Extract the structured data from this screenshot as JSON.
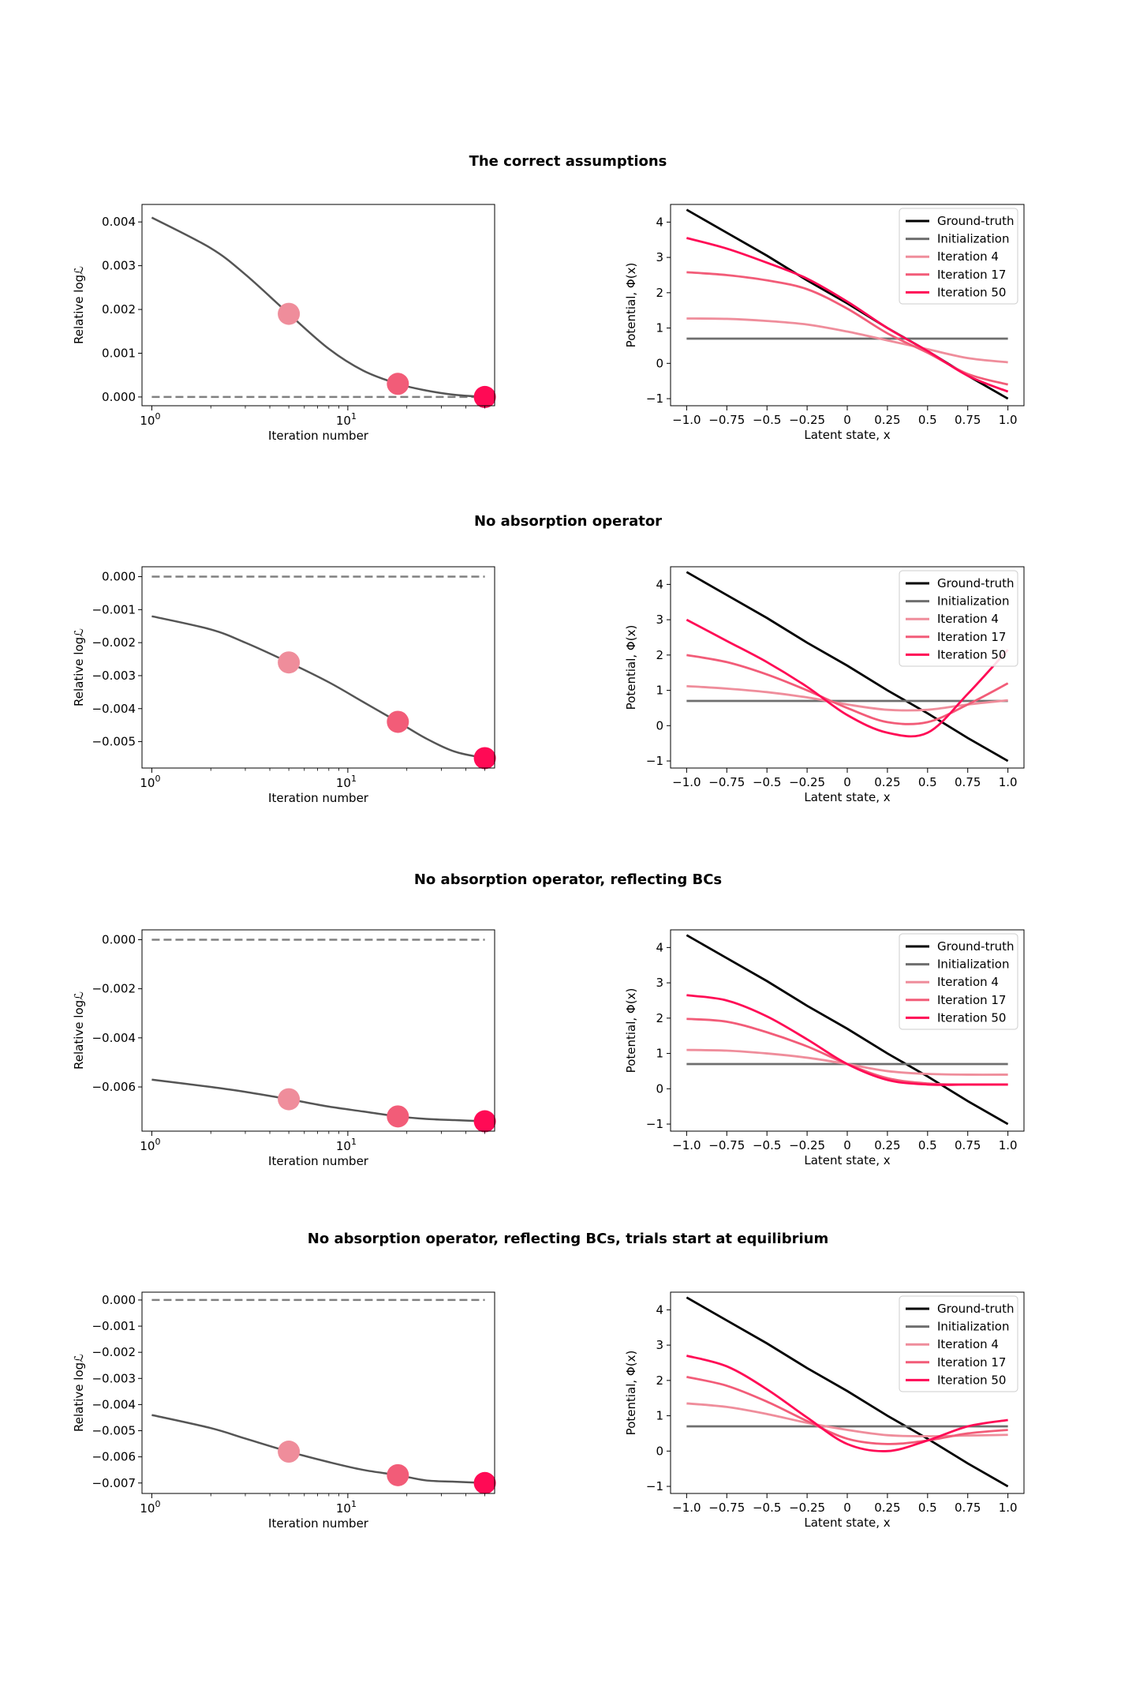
{
  "colors": {
    "ground_truth": "#000000",
    "initialization": "#6e6e6e",
    "iter4": "#ef8d9b",
    "iter17": "#f25c78",
    "iter50": "#ff0a55",
    "loss_line": "#555555",
    "zero_ref": "#808080"
  },
  "panels": [
    {
      "title": "The correct assumptions",
      "loss": {
        "type": "line",
        "xscale": "log",
        "xlim": [
          1,
          50
        ],
        "ylim": [
          -0.0002,
          0.0044
        ],
        "yticks": [
          0.0,
          0.001,
          0.002,
          0.003,
          0.004
        ],
        "ytick_labels": [
          "0.000",
          "0.001",
          "0.002",
          "0.003",
          "0.004"
        ],
        "x": [
          1,
          2,
          3,
          5,
          8,
          12,
          18,
          25,
          35,
          50
        ],
        "y": [
          0.0041,
          0.0034,
          0.0028,
          0.0019,
          0.0011,
          0.0006,
          0.0003,
          0.00015,
          5e-05,
          0.0
        ],
        "markers": [
          {
            "x": 5,
            "y": 0.0019,
            "series": "iter4"
          },
          {
            "x": 18,
            "y": 0.0003,
            "series": "iter17"
          },
          {
            "x": 50,
            "y": 0.0,
            "series": "iter50"
          }
        ],
        "reference": 0.0,
        "xlabel": "Iteration number",
        "ylabel": "Relative logℒ"
      },
      "potential": {
        "type": "line",
        "xlim": [
          -1.1,
          1.1
        ],
        "ylim": [
          -1.2,
          4.5
        ],
        "yticks": [
          -1,
          0,
          1,
          2,
          3,
          4
        ],
        "x": [
          -1.0,
          -0.75,
          -0.5,
          -0.25,
          0.0,
          0.25,
          0.5,
          0.75,
          1.0
        ],
        "series": [
          {
            "name": "Ground-truth",
            "color_key": "ground_truth",
            "y": [
              4.35,
              3.7,
              3.05,
              2.35,
              1.7,
              1.0,
              0.35,
              -0.35,
              -1.0
            ]
          },
          {
            "name": "Initialization",
            "color_key": "initialization",
            "y": [
              0.7,
              0.7,
              0.7,
              0.7,
              0.7,
              0.7,
              0.7,
              0.7,
              0.7
            ]
          },
          {
            "name": "Iteration 4",
            "color_key": "iter4",
            "y": [
              1.27,
              1.26,
              1.2,
              1.1,
              0.9,
              0.65,
              0.4,
              0.15,
              0.03
            ]
          },
          {
            "name": "Iteration 17",
            "color_key": "iter17",
            "y": [
              2.58,
              2.5,
              2.35,
              2.1,
              1.55,
              0.85,
              0.3,
              -0.3,
              -0.6
            ]
          },
          {
            "name": "Iteration 50",
            "color_key": "iter50",
            "y": [
              3.55,
              3.25,
              2.85,
              2.4,
              1.75,
              1.0,
              0.35,
              -0.35,
              -0.8
            ]
          }
        ],
        "xlabel": "Latent state, x",
        "ylabel": "Potential, Φ(x)",
        "legend": "upper right"
      }
    },
    {
      "title": "No absorption operator",
      "loss": {
        "type": "line",
        "xscale": "log",
        "xlim": [
          1,
          50
        ],
        "ylim": [
          -0.0058,
          0.0003
        ],
        "yticks": [
          0.0,
          -0.001,
          -0.002,
          -0.003,
          -0.004,
          -0.005
        ],
        "ytick_labels": [
          "0.000",
          "−0.001",
          "−0.002",
          "−0.003",
          "−0.004",
          "−0.005"
        ],
        "x": [
          1,
          2,
          3,
          5,
          8,
          12,
          18,
          25,
          35,
          50
        ],
        "y": [
          -0.0012,
          -0.0016,
          -0.002,
          -0.0026,
          -0.0032,
          -0.0038,
          -0.0044,
          -0.0049,
          -0.0053,
          -0.0055
        ],
        "markers": [
          {
            "x": 5,
            "y": -0.0026,
            "series": "iter4"
          },
          {
            "x": 18,
            "y": -0.0044,
            "series": "iter17"
          },
          {
            "x": 50,
            "y": -0.0055,
            "series": "iter50"
          }
        ],
        "reference": 0.0,
        "xlabel": "Iteration number",
        "ylabel": "Relative logℒ"
      },
      "potential": {
        "type": "line",
        "xlim": [
          -1.1,
          1.1
        ],
        "ylim": [
          -1.2,
          4.5
        ],
        "yticks": [
          -1,
          0,
          1,
          2,
          3,
          4
        ],
        "x": [
          -1.0,
          -0.75,
          -0.5,
          -0.25,
          0.0,
          0.25,
          0.5,
          0.75,
          1.0
        ],
        "series": [
          {
            "name": "Ground-truth",
            "color_key": "ground_truth",
            "y": [
              4.35,
              3.7,
              3.05,
              2.35,
              1.7,
              1.0,
              0.35,
              -0.35,
              -1.0
            ]
          },
          {
            "name": "Initialization",
            "color_key": "initialization",
            "y": [
              0.7,
              0.7,
              0.7,
              0.7,
              0.7,
              0.7,
              0.7,
              0.7,
              0.7
            ]
          },
          {
            "name": "Iteration 4",
            "color_key": "iter4",
            "y": [
              1.12,
              1.05,
              0.95,
              0.8,
              0.6,
              0.45,
              0.45,
              0.6,
              0.72
            ]
          },
          {
            "name": "Iteration 17",
            "color_key": "iter17",
            "y": [
              2.0,
              1.8,
              1.45,
              1.0,
              0.5,
              0.1,
              0.1,
              0.6,
              1.2
            ]
          },
          {
            "name": "Iteration 50",
            "color_key": "iter50",
            "y": [
              3.0,
              2.4,
              1.8,
              1.1,
              0.3,
              -0.2,
              -0.2,
              0.9,
              2.15
            ]
          }
        ],
        "xlabel": "Latent state, x",
        "ylabel": "Potential, Φ(x)",
        "legend": "upper right"
      }
    },
    {
      "title": "No absorption operator, reflecting BCs",
      "loss": {
        "type": "line",
        "xscale": "log",
        "xlim": [
          1,
          50
        ],
        "ylim": [
          -0.0078,
          0.0004
        ],
        "yticks": [
          0.0,
          -0.002,
          -0.004,
          -0.006
        ],
        "ytick_labels": [
          "0.000",
          "−0.002",
          "−0.004",
          "−0.006"
        ],
        "x": [
          1,
          2,
          3,
          5,
          8,
          12,
          18,
          25,
          35,
          50
        ],
        "y": [
          -0.0057,
          -0.006,
          -0.0062,
          -0.0065,
          -0.0068,
          -0.007,
          -0.0072,
          -0.0073,
          -0.00735,
          -0.0074
        ],
        "markers": [
          {
            "x": 5,
            "y": -0.0065,
            "series": "iter4"
          },
          {
            "x": 18,
            "y": -0.0072,
            "series": "iter17"
          },
          {
            "x": 50,
            "y": -0.0074,
            "series": "iter50"
          }
        ],
        "reference": 0.0,
        "xlabel": "Iteration number",
        "ylabel": "Relative logℒ"
      },
      "potential": {
        "type": "line",
        "xlim": [
          -1.1,
          1.1
        ],
        "ylim": [
          -1.2,
          4.5
        ],
        "yticks": [
          -1,
          0,
          1,
          2,
          3,
          4
        ],
        "x": [
          -1.0,
          -0.75,
          -0.5,
          -0.25,
          0.0,
          0.25,
          0.5,
          0.75,
          1.0
        ],
        "series": [
          {
            "name": "Ground-truth",
            "color_key": "ground_truth",
            "y": [
              4.35,
              3.7,
              3.05,
              2.35,
              1.7,
              1.0,
              0.35,
              -0.35,
              -1.0
            ]
          },
          {
            "name": "Initialization",
            "color_key": "initialization",
            "y": [
              0.7,
              0.7,
              0.7,
              0.7,
              0.7,
              0.7,
              0.7,
              0.7,
              0.7
            ]
          },
          {
            "name": "Iteration 4",
            "color_key": "iter4",
            "y": [
              1.1,
              1.08,
              1.0,
              0.88,
              0.7,
              0.5,
              0.42,
              0.4,
              0.4
            ]
          },
          {
            "name": "Iteration 17",
            "color_key": "iter17",
            "y": [
              1.98,
              1.9,
              1.6,
              1.2,
              0.7,
              0.3,
              0.15,
              0.12,
              0.12
            ]
          },
          {
            "name": "Iteration 50",
            "color_key": "iter50",
            "y": [
              2.65,
              2.5,
              2.05,
              1.4,
              0.7,
              0.25,
              0.12,
              0.12,
              0.12
            ]
          }
        ],
        "xlabel": "Latent state, x",
        "ylabel": "Potential, Φ(x)",
        "legend": "upper right"
      }
    },
    {
      "title": "No absorption operator, reflecting BCs, trials start at equilibrium",
      "loss": {
        "type": "line",
        "xscale": "log",
        "xlim": [
          1,
          50
        ],
        "ylim": [
          -0.0074,
          0.0003
        ],
        "yticks": [
          0.0,
          -0.001,
          -0.002,
          -0.003,
          -0.004,
          -0.005,
          -0.006,
          -0.007
        ],
        "ytick_labels": [
          "0.000",
          "−0.001",
          "−0.002",
          "−0.003",
          "−0.004",
          "−0.005",
          "−0.006",
          "−0.007"
        ],
        "x": [
          1,
          2,
          3,
          5,
          8,
          12,
          18,
          25,
          35,
          50
        ],
        "y": [
          -0.0044,
          -0.0049,
          -0.0053,
          -0.0058,
          -0.0062,
          -0.0065,
          -0.0067,
          -0.0069,
          -0.00695,
          -0.007
        ],
        "markers": [
          {
            "x": 5,
            "y": -0.0058,
            "series": "iter4"
          },
          {
            "x": 18,
            "y": -0.0067,
            "series": "iter17"
          },
          {
            "x": 50,
            "y": -0.007,
            "series": "iter50"
          }
        ],
        "reference": 0.0,
        "xlabel": "Iteration number",
        "ylabel": "Relative logℒ"
      },
      "potential": {
        "type": "line",
        "xlim": [
          -1.1,
          1.1
        ],
        "ylim": [
          -1.2,
          4.5
        ],
        "yticks": [
          -1,
          0,
          1,
          2,
          3,
          4
        ],
        "x": [
          -1.0,
          -0.75,
          -0.5,
          -0.25,
          0.0,
          0.25,
          0.5,
          0.75,
          1.0
        ],
        "series": [
          {
            "name": "Ground-truth",
            "color_key": "ground_truth",
            "y": [
              4.35,
              3.7,
              3.05,
              2.35,
              1.7,
              1.0,
              0.35,
              -0.35,
              -1.0
            ]
          },
          {
            "name": "Initialization",
            "color_key": "initialization",
            "y": [
              0.7,
              0.7,
              0.7,
              0.7,
              0.7,
              0.7,
              0.7,
              0.7,
              0.7
            ]
          },
          {
            "name": "Iteration 4",
            "color_key": "iter4",
            "y": [
              1.35,
              1.25,
              1.05,
              0.8,
              0.6,
              0.45,
              0.42,
              0.44,
              0.46
            ]
          },
          {
            "name": "Iteration 17",
            "color_key": "iter17",
            "y": [
              2.1,
              1.85,
              1.4,
              0.85,
              0.35,
              0.2,
              0.3,
              0.5,
              0.6
            ]
          },
          {
            "name": "Iteration 50",
            "color_key": "iter50",
            "y": [
              2.7,
              2.4,
              1.75,
              0.95,
              0.2,
              0.0,
              0.3,
              0.7,
              0.88
            ]
          }
        ],
        "xlabel": "Latent state, x",
        "ylabel": "Potential, Φ(x)",
        "legend": "upper right"
      }
    }
  ]
}
